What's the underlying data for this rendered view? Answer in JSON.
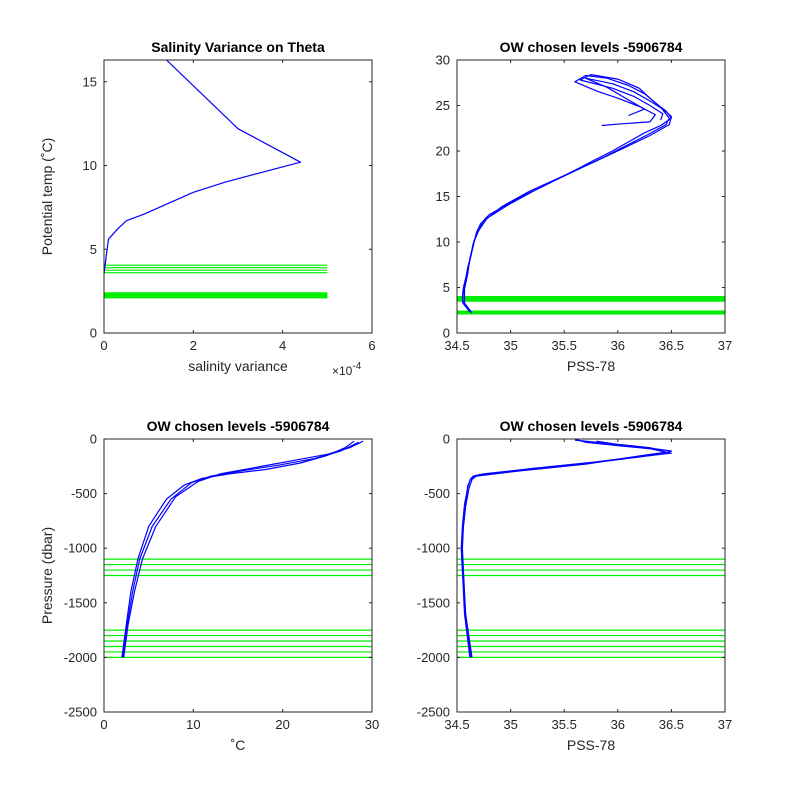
{
  "colors": {
    "profile": "#0000ff",
    "level": "#00ee00",
    "axis": "#262626",
    "background": "#ffffff"
  },
  "chart_data": [
    {
      "type": "line",
      "title": "Salinity Variance on Theta",
      "xlabel": "salinity variance",
      "ylabel": "Potential temp (˚C)",
      "x_exponent_label": "×10",
      "x_exponent_power": "-4",
      "xlim": [
        0,
        6
      ],
      "ylim": [
        0,
        16.3
      ],
      "xticks": [
        0,
        2,
        4,
        6
      ],
      "xtick_labels": [
        "0",
        "2",
        "4",
        "6"
      ],
      "yticks": [
        0,
        5,
        10,
        15
      ],
      "ytick_labels": [
        "0",
        "5",
        "10",
        "15"
      ],
      "series": [
        {
          "points": [
            [
              0,
              3.5
            ],
            [
              0.05,
              4.6
            ],
            [
              0.1,
              5.6
            ],
            [
              0.3,
              6.2
            ],
            [
              0.5,
              6.7
            ],
            [
              0.9,
              7.1
            ],
            [
              2.0,
              8.4
            ],
            [
              2.7,
              9.0
            ],
            [
              3.4,
              9.5
            ],
            [
              4.4,
              10.2
            ],
            [
              3.0,
              12.2
            ],
            [
              1.4,
              16.3
            ]
          ]
        }
      ],
      "levels": [
        2.1,
        2.15,
        2.2,
        2.25,
        2.3,
        2.35,
        2.4,
        3.6,
        3.75,
        3.9,
        4.05
      ],
      "level_x_range": [
        0,
        5
      ]
    },
    {
      "type": "line",
      "title": "OW chosen levels -5906784",
      "xlabel": "PSS-78",
      "ylabel": "",
      "xlim": [
        34.5,
        37
      ],
      "ylim": [
        0,
        30
      ],
      "xticks": [
        34.5,
        35,
        35.5,
        36,
        36.5,
        37
      ],
      "xtick_labels": [
        "34.5",
        "35",
        "35.5",
        "36",
        "36.5",
        "37"
      ],
      "yticks": [
        0,
        5,
        10,
        15,
        20,
        25,
        30
      ],
      "ytick_labels": [
        "0",
        "5",
        "10",
        "15",
        "20",
        "25",
        "30"
      ],
      "series": [
        {
          "points": [
            [
              34.63,
              2.3
            ],
            [
              34.56,
              3.2
            ],
            [
              34.55,
              4.0
            ],
            [
              34.56,
              5.0
            ],
            [
              34.58,
              6.0
            ],
            [
              34.6,
              7.0
            ],
            [
              34.62,
              8.0
            ],
            [
              34.64,
              9.0
            ],
            [
              34.66,
              10.0
            ],
            [
              34.68,
              11.0
            ],
            [
              34.72,
              12.0
            ],
            [
              34.8,
              13.0
            ],
            [
              34.95,
              14.0
            ],
            [
              35.1,
              15.0
            ],
            [
              35.28,
              16.0
            ],
            [
              35.45,
              17.0
            ],
            [
              35.62,
              18.0
            ],
            [
              35.78,
              19.0
            ],
            [
              35.95,
              20.0
            ],
            [
              36.1,
              21.0
            ],
            [
              36.25,
              22.0
            ],
            [
              36.4,
              22.8
            ],
            [
              36.5,
              23.6
            ],
            [
              36.45,
              24.4
            ],
            [
              36.35,
              25.3
            ],
            [
              36.25,
              26.3
            ],
            [
              36.1,
              27.2
            ],
            [
              35.9,
              28.0
            ],
            [
              35.7,
              28.3
            ],
            [
              35.6,
              27.6
            ],
            [
              35.8,
              26.6
            ],
            [
              36.0,
              25.8
            ],
            [
              36.2,
              24.9
            ],
            [
              36.35,
              24.0
            ],
            [
              36.3,
              23.2
            ],
            [
              36.05,
              23.0
            ],
            [
              35.85,
              22.8
            ]
          ]
        },
        {
          "points": [
            [
              34.62,
              2.3
            ],
            [
              34.55,
              3.4
            ],
            [
              34.56,
              4.5
            ],
            [
              34.58,
              5.8
            ],
            [
              34.6,
              7.2
            ],
            [
              34.63,
              8.5
            ],
            [
              34.65,
              9.8
            ],
            [
              34.7,
              11.2
            ],
            [
              34.78,
              12.6
            ],
            [
              34.98,
              14.1
            ],
            [
              35.2,
              15.5
            ],
            [
              35.42,
              16.8
            ],
            [
              35.65,
              18.1
            ],
            [
              35.88,
              19.4
            ],
            [
              36.08,
              20.6
            ],
            [
              36.28,
              21.8
            ],
            [
              36.45,
              22.9
            ],
            [
              36.48,
              23.6
            ],
            [
              36.4,
              24.8
            ],
            [
              36.3,
              25.8
            ],
            [
              36.2,
              26.9
            ],
            [
              36.0,
              27.9
            ],
            [
              35.75,
              28.4
            ],
            [
              35.65,
              27.8
            ],
            [
              35.95,
              26.9
            ],
            [
              36.15,
              26.0
            ],
            [
              36.3,
              25.0
            ],
            [
              36.42,
              24.1
            ],
            [
              36.4,
              23.4
            ]
          ]
        },
        {
          "points": [
            [
              34.64,
              2.2
            ],
            [
              34.57,
              3.3
            ],
            [
              34.57,
              4.8
            ],
            [
              34.6,
              6.5
            ],
            [
              34.62,
              8.2
            ],
            [
              34.66,
              10.2
            ],
            [
              34.74,
              12.2
            ],
            [
              34.92,
              13.9
            ],
            [
              35.18,
              15.6
            ],
            [
              35.48,
              17.2
            ],
            [
              35.78,
              18.8
            ],
            [
              36.05,
              20.3
            ],
            [
              36.3,
              21.7
            ],
            [
              36.48,
              22.9
            ],
            [
              36.5,
              23.8
            ],
            [
              36.42,
              24.6
            ],
            [
              36.3,
              25.5
            ],
            [
              36.15,
              26.5
            ],
            [
              35.95,
              27.4
            ],
            [
              35.7,
              28.0
            ],
            [
              35.9,
              27.0
            ],
            [
              36.1,
              25.6
            ],
            [
              36.25,
              24.6
            ],
            [
              36.1,
              23.9
            ]
          ]
        }
      ],
      "levels": [
        2.1,
        2.15,
        2.2,
        2.25,
        2.3,
        2.35,
        2.4,
        3.5,
        3.6,
        3.7,
        3.8,
        3.9,
        4.0
      ],
      "level_x_range": [
        34.5,
        37
      ]
    },
    {
      "type": "line",
      "title": "OW chosen levels -5906784",
      "xlabel": "˚C",
      "ylabel": "Pressure (dbar)",
      "xlim": [
        0,
        30
      ],
      "ylim": [
        -2500,
        0
      ],
      "xticks": [
        0,
        10,
        20,
        30
      ],
      "xtick_labels": [
        "0",
        "10",
        "20",
        "30"
      ],
      "yticks": [
        -2500,
        -2000,
        -1500,
        -1000,
        -500,
        0
      ],
      "ytick_labels": [
        "-2500",
        "-2000",
        "-1500",
        "-1000",
        "-500",
        "0"
      ],
      "series": [
        {
          "points": [
            [
              2.0,
              -2000
            ],
            [
              2.5,
              -1700
            ],
            [
              3.0,
              -1400
            ],
            [
              3.8,
              -1100
            ],
            [
              5.0,
              -800
            ],
            [
              7.0,
              -550
            ],
            [
              9.0,
              -420
            ],
            [
              11.0,
              -360
            ],
            [
              14.0,
              -320
            ],
            [
              18.0,
              -280
            ],
            [
              22.0,
              -220
            ],
            [
              25.0,
              -150
            ],
            [
              27.0,
              -80
            ],
            [
              28.0,
              -20
            ]
          ]
        },
        {
          "points": [
            [
              2.1,
              -2000
            ],
            [
              2.6,
              -1700
            ],
            [
              3.2,
              -1400
            ],
            [
              4.0,
              -1100
            ],
            [
              5.4,
              -800
            ],
            [
              7.5,
              -550
            ],
            [
              9.8,
              -400
            ],
            [
              12.0,
              -340
            ],
            [
              15.5,
              -290
            ],
            [
              19.5,
              -240
            ],
            [
              23.5,
              -180
            ],
            [
              26.5,
              -110
            ],
            [
              28.5,
              -30
            ]
          ]
        },
        {
          "points": [
            [
              2.2,
              -2000
            ],
            [
              2.7,
              -1700
            ],
            [
              3.4,
              -1400
            ],
            [
              4.3,
              -1100
            ],
            [
              5.8,
              -800
            ],
            [
              8.0,
              -530
            ],
            [
              10.5,
              -390
            ],
            [
              13.0,
              -320
            ],
            [
              17.0,
              -260
            ],
            [
              21.0,
              -200
            ],
            [
              25.0,
              -140
            ],
            [
              27.5,
              -80
            ],
            [
              29.0,
              -20
            ]
          ]
        }
      ],
      "levels": [
        -1100,
        -1150,
        -1200,
        -1250,
        -1750,
        -1800,
        -1850,
        -1900,
        -1950,
        -2000
      ],
      "level_x_range": [
        0,
        30
      ]
    },
    {
      "type": "line",
      "title": "OW chosen levels -5906784",
      "xlabel": "PSS-78",
      "ylabel": "",
      "xlim": [
        34.5,
        37
      ],
      "ylim": [
        -2500,
        0
      ],
      "xticks": [
        34.5,
        35,
        35.5,
        36,
        36.5,
        37
      ],
      "xtick_labels": [
        "34.5",
        "35",
        "35.5",
        "36",
        "36.5",
        "37"
      ],
      "yticks": [
        -2500,
        -2000,
        -1500,
        -1000,
        -500,
        0
      ],
      "ytick_labels": [
        "-2500",
        "-2000",
        "-1500",
        "-1000",
        "-500",
        "0"
      ],
      "series": [
        {
          "points": [
            [
              34.63,
              -2000
            ],
            [
              34.58,
              -1600
            ],
            [
              34.55,
              -1200
            ],
            [
              34.54,
              -1000
            ],
            [
              34.55,
              -800
            ],
            [
              34.57,
              -600
            ],
            [
              34.6,
              -450
            ],
            [
              34.62,
              -380
            ],
            [
              34.65,
              -340
            ],
            [
              34.75,
              -320
            ],
            [
              35.2,
              -270
            ],
            [
              35.8,
              -210
            ],
            [
              36.2,
              -160
            ],
            [
              36.5,
              -130
            ],
            [
              36.3,
              -90
            ],
            [
              36.0,
              -60
            ],
            [
              35.7,
              -30
            ],
            [
              35.6,
              0
            ]
          ]
        },
        {
          "points": [
            [
              34.62,
              -2000
            ],
            [
              34.57,
              -1600
            ],
            [
              34.55,
              -1200
            ],
            [
              34.54,
              -1000
            ],
            [
              34.56,
              -800
            ],
            [
              34.58,
              -600
            ],
            [
              34.6,
              -430
            ],
            [
              34.63,
              -360
            ],
            [
              34.7,
              -330
            ],
            [
              35.0,
              -300
            ],
            [
              35.5,
              -250
            ],
            [
              36.0,
              -190
            ],
            [
              36.4,
              -140
            ],
            [
              36.5,
              -110
            ],
            [
              36.2,
              -70
            ],
            [
              35.9,
              -40
            ],
            [
              35.6,
              -10
            ]
          ]
        },
        {
          "points": [
            [
              34.64,
              -2000
            ],
            [
              34.58,
              -1600
            ],
            [
              34.56,
              -1200
            ],
            [
              34.55,
              -1000
            ],
            [
              34.56,
              -800
            ],
            [
              34.58,
              -620
            ],
            [
              34.61,
              -460
            ],
            [
              34.64,
              -370
            ],
            [
              34.68,
              -340
            ],
            [
              35.1,
              -290
            ],
            [
              35.7,
              -230
            ],
            [
              36.1,
              -170
            ],
            [
              36.45,
              -120
            ],
            [
              36.3,
              -80
            ],
            [
              36.0,
              -50
            ],
            [
              35.8,
              -20
            ]
          ]
        }
      ],
      "levels": [
        -1100,
        -1150,
        -1200,
        -1250,
        -1750,
        -1800,
        -1850,
        -1900,
        -1950,
        -2000
      ],
      "level_x_range": [
        34.5,
        37
      ]
    }
  ]
}
